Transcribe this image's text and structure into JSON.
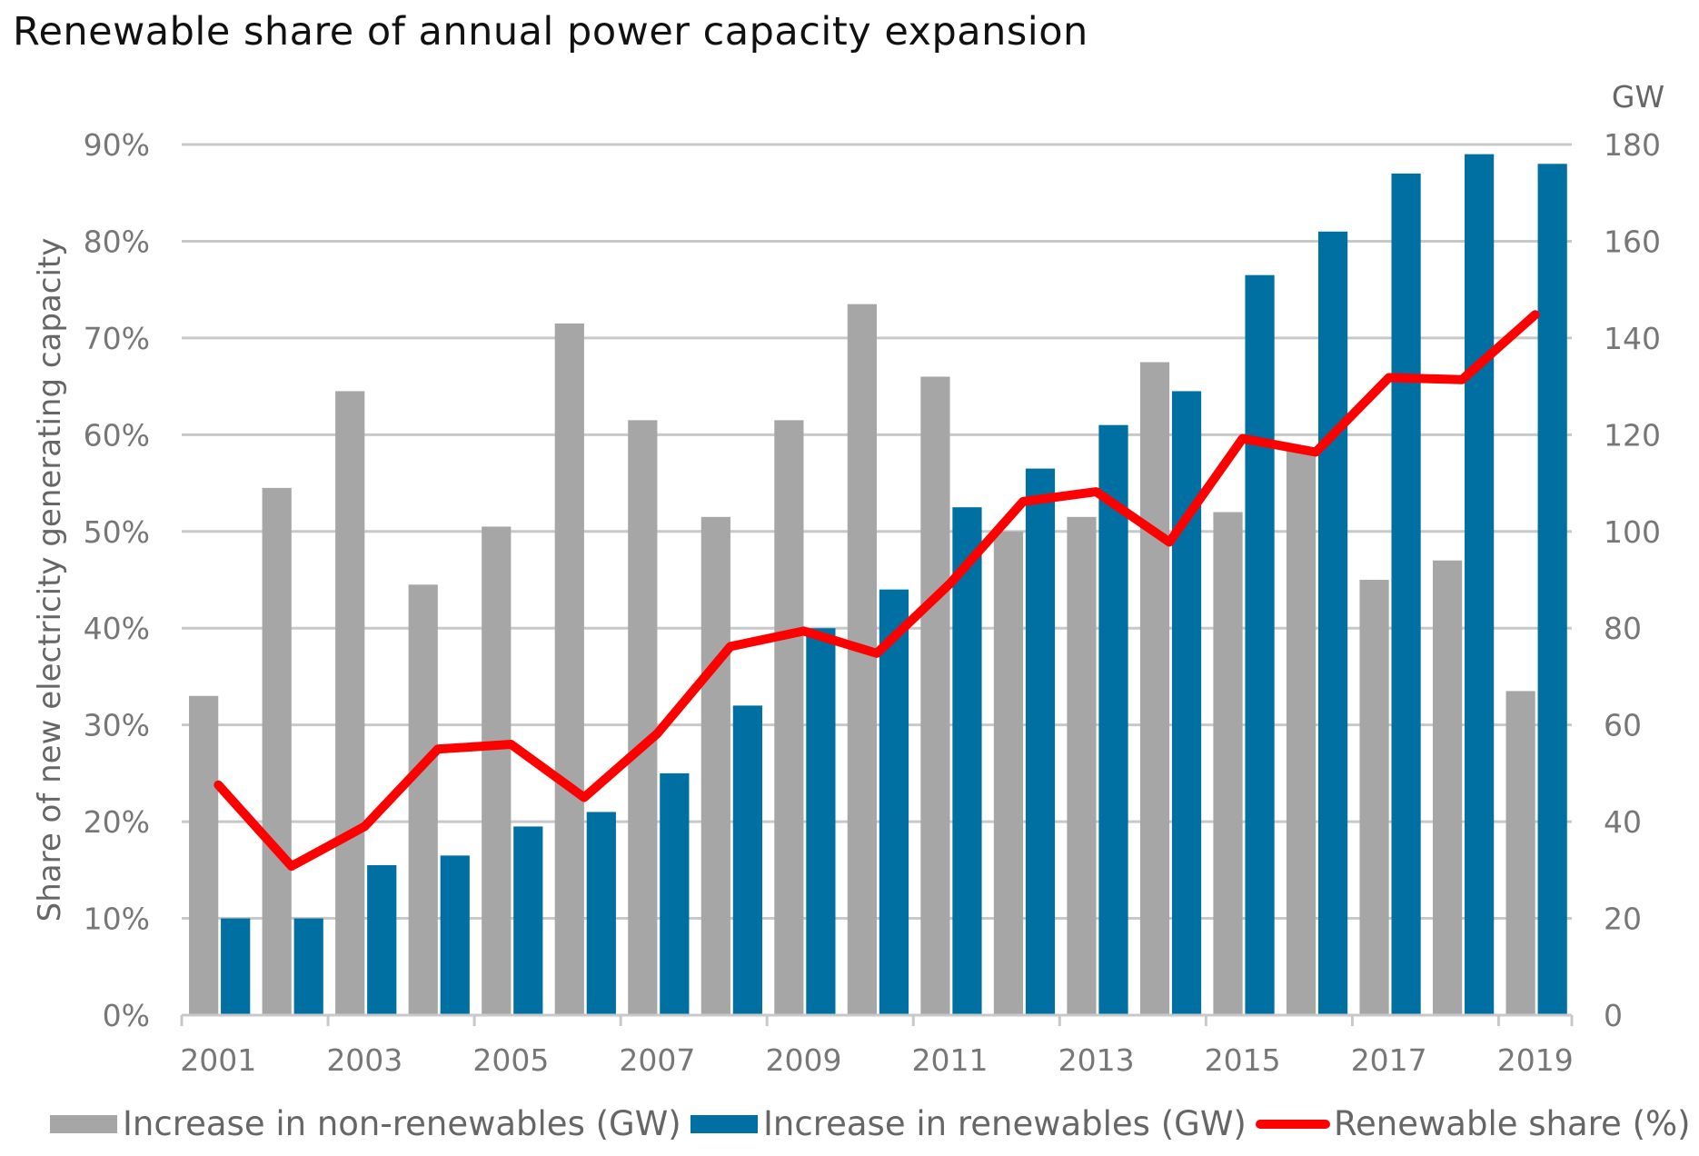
{
  "chart_data": {
    "type": "bar",
    "title": "Renewable share of annual power capacity expansion",
    "categories": [
      "2001",
      "2002",
      "2003",
      "2004",
      "2005",
      "2006",
      "2007",
      "2008",
      "2009",
      "2010",
      "2011",
      "2012",
      "2013",
      "2014",
      "2015",
      "2016",
      "2017",
      "2018",
      "2019"
    ],
    "x_tick_labels": [
      "2001",
      "2003",
      "2005",
      "2007",
      "2009",
      "2011",
      "2013",
      "2015",
      "2017",
      "2019"
    ],
    "ylabel_left": "Share of new electricity generating capacity",
    "ylabel_right": "GW",
    "ylim_left": [
      0,
      90
    ],
    "ylim_right": [
      0,
      180
    ],
    "left_ticks": [
      "0%",
      "10%",
      "20%",
      "30%",
      "40%",
      "50%",
      "60%",
      "70%",
      "80%",
      "90%"
    ],
    "right_ticks": [
      "0",
      "20",
      "40",
      "60",
      "80",
      "100",
      "120",
      "140",
      "160",
      "180"
    ],
    "grid": true,
    "legend_position": "bottom",
    "series": [
      {
        "name": "Increase in non-renewables (GW)",
        "type": "bar",
        "axis": "right",
        "color": "#a6a6a6",
        "values": [
          66,
          109,
          129,
          89,
          101,
          143,
          123,
          103,
          123,
          147,
          132,
          100,
          103,
          135,
          104,
          117,
          90,
          94,
          67
        ]
      },
      {
        "name": "Increase in renewables (GW)",
        "type": "bar",
        "axis": "right",
        "color": "#0070a2",
        "values": [
          20,
          20,
          31,
          33,
          39,
          42,
          50,
          64,
          80,
          88,
          105,
          113,
          122,
          129,
          153,
          162,
          174,
          178,
          176
        ]
      },
      {
        "name": "Renewable share (%)",
        "type": "line",
        "axis": "left",
        "color": "#ff0000",
        "values": [
          23.8,
          15.4,
          19.5,
          27.5,
          28.0,
          22.5,
          29.1,
          38.1,
          39.7,
          37.4,
          44.6,
          53.1,
          54.1,
          48.9,
          59.6,
          58.2,
          65.9,
          65.7,
          72.4
        ]
      }
    ]
  }
}
